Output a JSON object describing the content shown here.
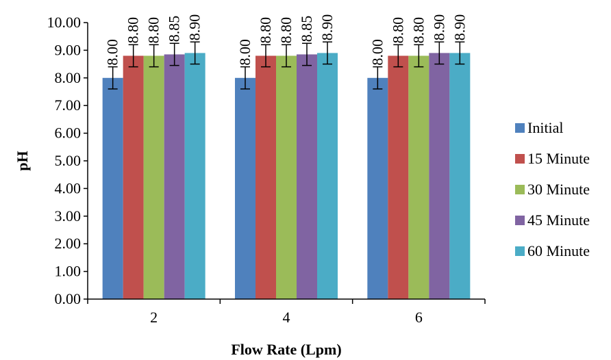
{
  "chart_data": {
    "type": "bar",
    "title": "",
    "xlabel": "Flow Rate (Lpm)",
    "ylabel": "pH",
    "categories": [
      "2",
      "4",
      "6"
    ],
    "ylim": [
      0,
      10
    ],
    "yticks": [
      "0.00",
      "1.00",
      "2.00",
      "3.00",
      "4.00",
      "5.00",
      "6.00",
      "7.00",
      "8.00",
      "9.00",
      "10.00"
    ],
    "error_bar": 0.4,
    "grid": false,
    "legend_position": "right",
    "series": [
      {
        "name": "Initial",
        "color": "#4f81bd",
        "values": [
          8.0,
          8.0,
          8.0
        ],
        "labels": [
          "8.00",
          "8.00",
          "8.00"
        ]
      },
      {
        "name": "15 Minute",
        "color": "#c0504d",
        "values": [
          8.8,
          8.8,
          8.8
        ],
        "labels": [
          "8.80",
          "8.80",
          "8.80"
        ]
      },
      {
        "name": "30 Minute",
        "color": "#9bbb59",
        "values": [
          8.8,
          8.8,
          8.8
        ],
        "labels": [
          "8.80",
          "8.80",
          "8.80"
        ]
      },
      {
        "name": "45 Minute",
        "color": "#8064a2",
        "values": [
          8.85,
          8.85,
          8.9
        ],
        "labels": [
          "8.85",
          "8.85",
          "8.90"
        ]
      },
      {
        "name": "60 Minute",
        "color": "#4bacc6",
        "values": [
          8.9,
          8.9,
          8.9
        ],
        "labels": [
          "8.90",
          "8.90",
          "8.90"
        ]
      }
    ]
  }
}
